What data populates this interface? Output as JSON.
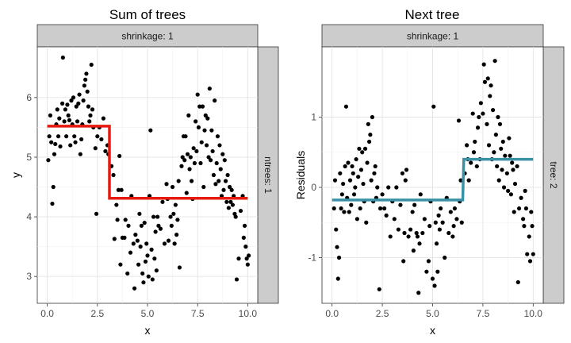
{
  "chart_data": [
    {
      "type": "scatter",
      "title": "Sum of trees",
      "xlabel": "x",
      "ylabel": "y",
      "facet_top": "shrinkage: 1",
      "facet_right": "ntrees: 1",
      "xlim": [
        -0.5,
        10.5
      ],
      "ylim": [
        2.55,
        6.85
      ],
      "xticks": [
        0,
        2.5,
        5,
        7.5,
        10
      ],
      "xtick_labels": [
        "0.0",
        "2.5",
        "5.0",
        "7.5",
        "10.0"
      ],
      "yticks": [
        3,
        4,
        5,
        6
      ],
      "ytick_labels": [
        "3",
        "4",
        "5",
        "6"
      ],
      "grid": true,
      "point_color": "#000000",
      "line_color": "#e8190e",
      "step_line": [
        [
          0,
          5.52
        ],
        [
          3.1,
          5.52
        ],
        [
          3.1,
          4.31
        ],
        [
          10,
          4.31
        ]
      ],
      "points": [
        [
          0.05,
          4.95
        ],
        [
          0.1,
          5.35
        ],
        [
          0.15,
          5.7
        ],
        [
          0.2,
          5.25
        ],
        [
          0.25,
          4.22
        ],
        [
          0.3,
          4.5
        ],
        [
          0.35,
          5.05
        ],
        [
          0.4,
          5.22
        ],
        [
          0.45,
          5.55
        ],
        [
          0.5,
          5.8
        ],
        [
          0.55,
          5.35
        ],
        [
          0.6,
          5.65
        ],
        [
          0.65,
          5.18
        ],
        [
          0.75,
          5.9
        ],
        [
          0.78,
          6.67
        ],
        [
          0.85,
          5.6
        ],
        [
          0.9,
          5.8
        ],
        [
          0.95,
          5.35
        ],
        [
          1.0,
          5.88
        ],
        [
          1.05,
          5.7
        ],
        [
          1.1,
          5.62
        ],
        [
          1.15,
          5.2
        ],
        [
          1.2,
          5.95
        ],
        [
          1.25,
          5.55
        ],
        [
          1.3,
          6.0
        ],
        [
          1.35,
          5.35
        ],
        [
          1.4,
          5.25
        ],
        [
          1.45,
          5.85
        ],
        [
          1.5,
          5.6
        ],
        [
          1.55,
          5.9
        ],
        [
          1.6,
          6.05
        ],
        [
          1.65,
          5.05
        ],
        [
          1.7,
          5.3
        ],
        [
          1.75,
          5.55
        ],
        [
          1.8,
          5.95
        ],
        [
          1.85,
          6.2
        ],
        [
          1.9,
          6.3
        ],
        [
          1.95,
          6.4
        ],
        [
          2.0,
          6.1
        ],
        [
          2.05,
          5.85
        ],
        [
          2.1,
          5.6
        ],
        [
          2.15,
          5.7
        ],
        [
          2.2,
          6.55
        ],
        [
          2.25,
          5.8
        ],
        [
          2.3,
          5.5
        ],
        [
          2.4,
          5.15
        ],
        [
          2.45,
          4.05
        ],
        [
          2.5,
          5.35
        ],
        [
          2.6,
          5.5
        ],
        [
          2.7,
          5.3
        ],
        [
          2.8,
          5.65
        ],
        [
          2.9,
          5.1
        ],
        [
          3.0,
          5.2
        ],
        [
          3.05,
          5.05
        ],
        [
          3.2,
          4.85
        ],
        [
          3.3,
          4.7
        ],
        [
          3.35,
          3.63
        ],
        [
          3.45,
          4.2
        ],
        [
          3.5,
          3.95
        ],
        [
          3.55,
          4.45
        ],
        [
          3.6,
          5.02
        ],
        [
          3.65,
          3.2
        ],
        [
          3.7,
          4.45
        ],
        [
          3.75,
          3.65
        ],
        [
          3.85,
          3.65
        ],
        [
          3.9,
          3.95
        ],
        [
          4.0,
          3.05
        ],
        [
          4.05,
          3.85
        ],
        [
          4.15,
          3.4
        ],
        [
          4.2,
          4.35
        ],
        [
          4.3,
          3.55
        ],
        [
          4.35,
          2.8
        ],
        [
          4.4,
          3.7
        ],
        [
          4.5,
          3.6
        ],
        [
          4.55,
          3.2
        ],
        [
          4.6,
          4.05
        ],
        [
          4.65,
          3.5
        ],
        [
          4.7,
          3.85
        ],
        [
          4.75,
          3.05
        ],
        [
          4.8,
          2.9
        ],
        [
          4.85,
          3.9
        ],
        [
          4.9,
          3.25
        ],
        [
          4.95,
          3.55
        ],
        [
          5.0,
          3.35
        ],
        [
          5.05,
          3.0
        ],
        [
          5.1,
          4.35
        ],
        [
          5.15,
          5.45
        ],
        [
          5.2,
          3.45
        ],
        [
          5.25,
          2.95
        ],
        [
          5.3,
          4.0
        ],
        [
          5.35,
          3.3
        ],
        [
          5.4,
          3.75
        ],
        [
          5.45,
          3.1
        ],
        [
          5.5,
          4.0
        ],
        [
          5.55,
          3.85
        ],
        [
          5.65,
          3.8
        ],
        [
          5.75,
          4.25
        ],
        [
          5.85,
          3.55
        ],
        [
          5.95,
          4.55
        ],
        [
          6.0,
          4.3
        ],
        [
          6.05,
          3.6
        ],
        [
          6.15,
          4.0
        ],
        [
          6.2,
          3.85
        ],
        [
          6.25,
          4.5
        ],
        [
          6.3,
          4.05
        ],
        [
          6.35,
          3.55
        ],
        [
          6.4,
          4.2
        ],
        [
          6.45,
          3.7
        ],
        [
          6.5,
          3.95
        ],
        [
          6.55,
          4.6
        ],
        [
          6.6,
          3.15
        ],
        [
          6.7,
          4.85
        ],
        [
          6.75,
          5.0
        ],
        [
          6.8,
          5.35
        ],
        [
          6.85,
          4.95
        ],
        [
          6.9,
          5.35
        ],
        [
          6.95,
          4.4
        ],
        [
          7.0,
          5.05
        ],
        [
          7.05,
          5.7
        ],
        [
          7.1,
          4.8
        ],
        [
          7.15,
          5.0
        ],
        [
          7.2,
          4.6
        ],
        [
          7.25,
          4.3
        ],
        [
          7.3,
          5.15
        ],
        [
          7.35,
          4.9
        ],
        [
          7.4,
          5.6
        ],
        [
          7.45,
          5.1
        ],
        [
          7.5,
          6.05
        ],
        [
          7.55,
          5.5
        ],
        [
          7.6,
          5.85
        ],
        [
          7.65,
          4.9
        ],
        [
          7.7,
          5.25
        ],
        [
          7.75,
          5.85
        ],
        [
          7.8,
          4.5
        ],
        [
          7.85,
          5.45
        ],
        [
          7.9,
          5.7
        ],
        [
          7.95,
          5.2
        ],
        [
          8.0,
          5.65
        ],
        [
          8.05,
          5.0
        ],
        [
          8.1,
          6.15
        ],
        [
          8.15,
          4.95
        ],
        [
          8.2,
          5.45
        ],
        [
          8.25,
          5.1
        ],
        [
          8.3,
          4.7
        ],
        [
          8.35,
          5.95
        ],
        [
          8.4,
          4.55
        ],
        [
          8.45,
          4.9
        ],
        [
          8.5,
          5.35
        ],
        [
          8.55,
          4.6
        ],
        [
          8.6,
          5.2
        ],
        [
          8.65,
          4.8
        ],
        [
          8.7,
          4.35
        ],
        [
          8.75,
          5.05
        ],
        [
          8.8,
          4.45
        ],
        [
          8.85,
          4.95
        ],
        [
          8.9,
          4.6
        ],
        [
          8.95,
          4.25
        ],
        [
          9.0,
          4.7
        ],
        [
          9.05,
          4.15
        ],
        [
          9.1,
          4.5
        ],
        [
          9.15,
          4.25
        ],
        [
          9.2,
          4.45
        ],
        [
          9.25,
          4.2
        ],
        [
          9.3,
          4.35
        ],
        [
          9.35,
          4.05
        ],
        [
          9.4,
          4.0
        ],
        [
          9.45,
          2.95
        ],
        [
          9.55,
          3.3
        ],
        [
          9.65,
          4.1
        ],
        [
          9.75,
          4.35
        ],
        [
          9.8,
          3.65
        ],
        [
          9.85,
          3.85
        ],
        [
          9.9,
          3.5
        ],
        [
          9.95,
          3.3
        ],
        [
          10.0,
          3.2
        ],
        [
          10.05,
          3.35
        ]
      ]
    },
    {
      "type": "scatter",
      "title": "Next tree",
      "xlabel": "x",
      "ylabel": "Residuals",
      "facet_top": "shrinkage: 1",
      "facet_right": "tree: 2",
      "xlim": [
        -0.5,
        10.5
      ],
      "ylim": [
        -1.65,
        2.0
      ],
      "xticks": [
        0,
        2.5,
        5,
        7.5,
        10
      ],
      "xtick_labels": [
        "0.0",
        "2.5",
        "5.0",
        "7.5",
        "10.0"
      ],
      "yticks": [
        -1,
        0,
        1
      ],
      "ytick_labels": [
        "-1",
        "0",
        "1"
      ],
      "grid": true,
      "point_color": "#000000",
      "line_color": "#3a90a5",
      "step_line": [
        [
          0,
          -0.18
        ],
        [
          6.5,
          -0.18
        ],
        [
          6.55,
          0.4
        ],
        [
          10,
          0.4
        ]
      ],
      "points": [
        [
          0.1,
          -0.3
        ],
        [
          0.15,
          0.1
        ],
        [
          0.2,
          -0.6
        ],
        [
          0.25,
          -0.85
        ],
        [
          0.3,
          -1.3
        ],
        [
          0.35,
          -1.0
        ],
        [
          0.4,
          0.2
        ],
        [
          0.45,
          -0.3
        ],
        [
          0.5,
          -0.1
        ],
        [
          0.55,
          0.05
        ],
        [
          0.6,
          -0.35
        ],
        [
          0.65,
          0.3
        ],
        [
          0.7,
          1.15
        ],
        [
          0.75,
          -0.15
        ],
        [
          0.8,
          0.35
        ],
        [
          0.85,
          -0.35
        ],
        [
          0.9,
          0.1
        ],
        [
          0.95,
          -0.25
        ],
        [
          1.0,
          0.3
        ],
        [
          1.05,
          0.2
        ],
        [
          1.1,
          -0.1
        ],
        [
          1.15,
          0.0
        ],
        [
          1.2,
          0.4
        ],
        [
          1.25,
          -0.45
        ],
        [
          1.3,
          0.15
        ],
        [
          1.35,
          0.55
        ],
        [
          1.4,
          -0.3
        ],
        [
          1.45,
          0.25
        ],
        [
          1.5,
          0.5
        ],
        [
          1.55,
          0.05
        ],
        [
          1.6,
          -0.2
        ],
        [
          1.65,
          0.55
        ],
        [
          1.7,
          -0.5
        ],
        [
          1.75,
          0.35
        ],
        [
          1.8,
          0.9
        ],
        [
          1.85,
          0.65
        ],
        [
          1.9,
          0.75
        ],
        [
          1.95,
          0.1
        ],
        [
          2.0,
          1.0
        ],
        [
          2.05,
          -0.2
        ],
        [
          2.1,
          0.2
        ],
        [
          2.15,
          0.3
        ],
        [
          2.2,
          -0.15
        ],
        [
          2.25,
          0.0
        ],
        [
          2.35,
          -1.45
        ],
        [
          2.4,
          -0.3
        ],
        [
          2.5,
          -0.1
        ],
        [
          2.6,
          -0.3
        ],
        [
          2.7,
          -0.4
        ],
        [
          2.8,
          0.0
        ],
        [
          2.9,
          -0.7
        ],
        [
          3.0,
          -0.2
        ],
        [
          3.1,
          -0.45
        ],
        [
          3.2,
          0.0
        ],
        [
          3.3,
          -0.6
        ],
        [
          3.4,
          -0.25
        ],
        [
          3.5,
          0.2
        ],
        [
          3.55,
          -1.05
        ],
        [
          3.6,
          -0.65
        ],
        [
          3.65,
          0.1
        ],
        [
          3.7,
          0.25
        ],
        [
          3.8,
          -0.7
        ],
        [
          3.9,
          -0.6
        ],
        [
          4.0,
          -0.35
        ],
        [
          4.05,
          -0.9
        ],
        [
          4.1,
          -0.25
        ],
        [
          4.2,
          -0.65
        ],
        [
          4.25,
          -0.7
        ],
        [
          4.3,
          -1.5
        ],
        [
          4.35,
          -0.8
        ],
        [
          4.4,
          -0.1
        ],
        [
          4.5,
          -0.65
        ],
        [
          4.6,
          -0.45
        ],
        [
          4.7,
          -1.2
        ],
        [
          4.8,
          -1.05
        ],
        [
          4.85,
          -0.55
        ],
        [
          4.9,
          -0.2
        ],
        [
          5.0,
          -1.3
        ],
        [
          5.05,
          1.15
        ],
        [
          5.1,
          -1.4
        ],
        [
          5.15,
          -0.5
        ],
        [
          5.2,
          -0.8
        ],
        [
          5.25,
          -1.2
        ],
        [
          5.3,
          -0.4
        ],
        [
          5.35,
          -0.6
        ],
        [
          5.4,
          -0.3
        ],
        [
          5.5,
          -0.5
        ],
        [
          5.6,
          -1.0
        ],
        [
          5.7,
          -0.15
        ],
        [
          5.8,
          -0.65
        ],
        [
          5.9,
          -0.35
        ],
        [
          6.0,
          -0.7
        ],
        [
          6.05,
          -0.55
        ],
        [
          6.1,
          -0.3
        ],
        [
          6.2,
          -0.45
        ],
        [
          6.3,
          0.95
        ],
        [
          6.35,
          -0.2
        ],
        [
          6.4,
          0.1
        ],
        [
          6.45,
          -0.5
        ],
        [
          6.6,
          0.2
        ],
        [
          6.7,
          0.6
        ],
        [
          6.75,
          0.4
        ],
        [
          6.8,
          0.1
        ],
        [
          6.9,
          0.35
        ],
        [
          7.0,
          1.05
        ],
        [
          7.05,
          0.5
        ],
        [
          7.1,
          0.65
        ],
        [
          7.2,
          0.3
        ],
        [
          7.25,
          0.85
        ],
        [
          7.3,
          1.0
        ],
        [
          7.35,
          0.4
        ],
        [
          7.4,
          1.2
        ],
        [
          7.5,
          1.05
        ],
        [
          7.55,
          1.75
        ],
        [
          7.6,
          1.5
        ],
        [
          7.7,
          0.9
        ],
        [
          7.75,
          1.55
        ],
        [
          7.8,
          0.6
        ],
        [
          7.85,
          1.3
        ],
        [
          7.9,
          1.45
        ],
        [
          7.95,
          0.4
        ],
        [
          8.0,
          1.1
        ],
        [
          8.05,
          0.5
        ],
        [
          8.1,
          1.8
        ],
        [
          8.15,
          0.75
        ],
        [
          8.2,
          0.3
        ],
        [
          8.25,
          1.0
        ],
        [
          8.3,
          0.1
        ],
        [
          8.35,
          0.9
        ],
        [
          8.4,
          0.55
        ],
        [
          8.45,
          0.25
        ],
        [
          8.5,
          0.65
        ],
        [
          8.55,
          0.0
        ],
        [
          8.6,
          0.45
        ],
        [
          8.7,
          0.2
        ],
        [
          8.75,
          -0.05
        ],
        [
          8.8,
          0.7
        ],
        [
          8.85,
          0.45
        ],
        [
          8.9,
          -0.1
        ],
        [
          8.95,
          0.35
        ],
        [
          9.0,
          0.25
        ],
        [
          9.05,
          -0.35
        ],
        [
          9.1,
          0.05
        ],
        [
          9.2,
          0.3
        ],
        [
          9.25,
          -1.35
        ],
        [
          9.3,
          -0.3
        ],
        [
          9.4,
          -0.15
        ],
        [
          9.5,
          -0.45
        ],
        [
          9.55,
          -0.55
        ],
        [
          9.6,
          -0.05
        ],
        [
          9.65,
          -0.3
        ],
        [
          9.7,
          -0.95
        ],
        [
          9.8,
          -0.7
        ],
        [
          9.85,
          -1.05
        ],
        [
          9.9,
          -0.35
        ],
        [
          9.95,
          -0.55
        ],
        [
          10.0,
          -0.95
        ]
      ]
    }
  ]
}
